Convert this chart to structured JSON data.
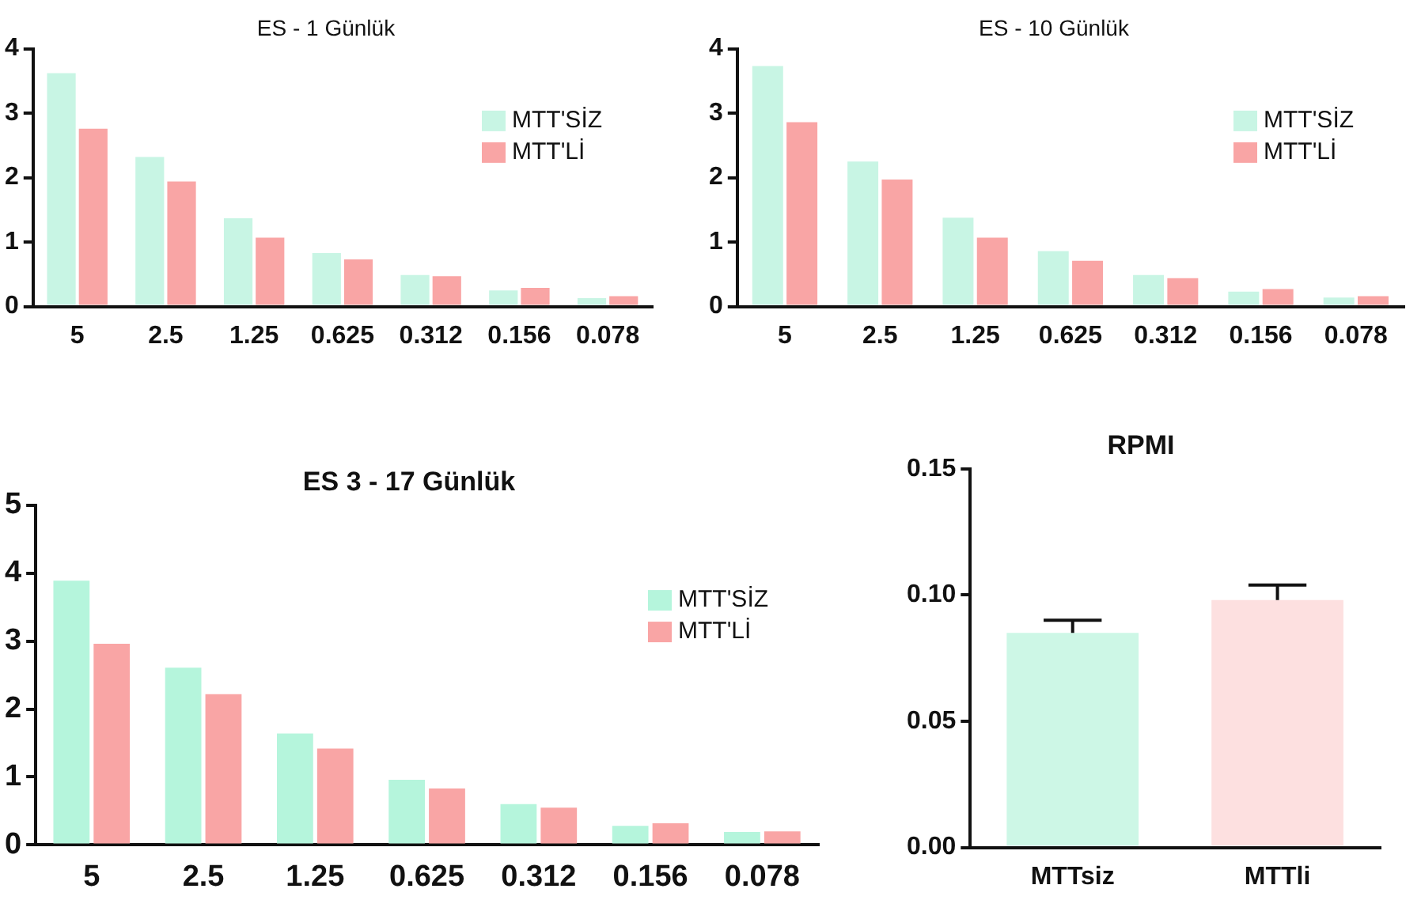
{
  "chart_data": [
    {
      "type": "bar",
      "title": "ES - 1 Günlük",
      "categories": [
        "5",
        "2.5",
        "1.25",
        "0.625",
        "0.312",
        "0.156",
        "0.078"
      ],
      "legend": "top right",
      "grid": false,
      "ylim": [
        0,
        4
      ],
      "yticks": [
        0,
        1,
        2,
        3,
        4
      ],
      "series": [
        {
          "name": "MTT'SİZ",
          "color": "#c8f5e4",
          "values": [
            3.62,
            2.32,
            1.37,
            0.83,
            0.49,
            0.25,
            0.13
          ]
        },
        {
          "name": "MTT'Lİ",
          "color": "#f9a5a5",
          "values": [
            2.76,
            1.94,
            1.07,
            0.73,
            0.47,
            0.29,
            0.16
          ]
        }
      ]
    },
    {
      "type": "bar",
      "title": "ES - 10 Günlük",
      "categories": [
        "5",
        "2.5",
        "1.25",
        "0.625",
        "0.312",
        "0.156",
        "0.078"
      ],
      "legend": "top right",
      "grid": false,
      "ylim": [
        0,
        4
      ],
      "yticks": [
        0,
        1,
        2,
        3,
        4
      ],
      "series": [
        {
          "name": "MTT'SİZ",
          "color": "#c8f5e4",
          "values": [
            3.73,
            2.25,
            1.38,
            0.86,
            0.49,
            0.23,
            0.14
          ]
        },
        {
          "name": "MTT'Lİ",
          "color": "#f9a5a5",
          "values": [
            2.86,
            1.97,
            1.07,
            0.71,
            0.44,
            0.27,
            0.16
          ]
        }
      ]
    },
    {
      "type": "bar",
      "title": "ES 3 - 17 Günlük",
      "categories": [
        "5",
        "2.5",
        "1.25",
        "0.625",
        "0.312",
        "0.156",
        "0.078"
      ],
      "legend": "top right",
      "grid": false,
      "ylim": [
        0,
        5
      ],
      "yticks": [
        0,
        1,
        2,
        3,
        4,
        5
      ],
      "series": [
        {
          "name": "MTT'SİZ",
          "color": "#b5f5dc",
          "values": [
            3.89,
            2.61,
            1.64,
            0.96,
            0.6,
            0.28,
            0.19
          ]
        },
        {
          "name": "MTT'Lİ",
          "color": "#f9a5a5",
          "values": [
            2.96,
            2.22,
            1.42,
            0.83,
            0.55,
            0.32,
            0.2
          ]
        }
      ]
    },
    {
      "type": "bar",
      "title": "RPMI",
      "categories": [
        "MTTsiz",
        "MTTli"
      ],
      "grid": false,
      "ylim": [
        0,
        0.15
      ],
      "yticks": [
        {
          "value": 0,
          "label": "0.00"
        },
        {
          "value": 0.05,
          "label": "0.05"
        },
        {
          "value": 0.1,
          "label": "0.10"
        },
        {
          "value": 0.15,
          "label": "0.15"
        }
      ],
      "values": [
        0.085,
        0.098
      ],
      "colors": [
        "#cdf7e6",
        "#fde0e0"
      ],
      "errors": [
        [
          0.085,
          0.09
        ],
        [
          0.098,
          0.104
        ]
      ]
    }
  ]
}
